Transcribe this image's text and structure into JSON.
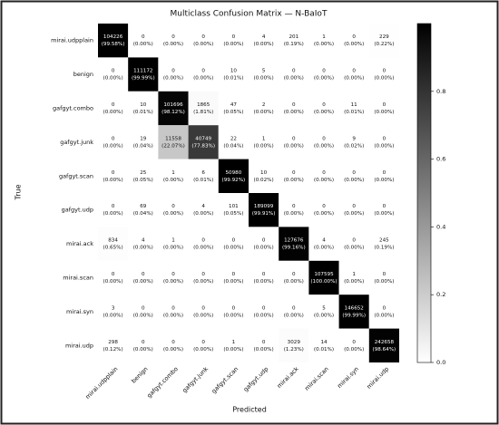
{
  "chart_data": {
    "type": "heatmap",
    "title": "Multiclass Confusion Matrix — N-BaIoT",
    "xlabel": "Predicted",
    "ylabel": "True",
    "categories": [
      "mirai.udpplain",
      "benign",
      "gafgyt.combo",
      "gafgyt.junk",
      "gafgyt.scan",
      "gafgyt.udp",
      "mirai.ack",
      "mirai.scan",
      "mirai.syn",
      "mirai.udp"
    ],
    "counts": [
      [
        104226,
        0,
        0,
        0,
        0,
        4,
        201,
        1,
        0,
        229
      ],
      [
        0,
        111172,
        0,
        0,
        10,
        5,
        0,
        0,
        0,
        0
      ],
      [
        0,
        10,
        101696,
        1865,
        47,
        2,
        0,
        0,
        11,
        0
      ],
      [
        0,
        19,
        11558,
        40749,
        22,
        1,
        0,
        0,
        9,
        0
      ],
      [
        0,
        25,
        1,
        6,
        50980,
        10,
        0,
        0,
        0,
        0
      ],
      [
        0,
        69,
        0,
        4,
        101,
        189099,
        0,
        0,
        0,
        0
      ],
      [
        834,
        4,
        1,
        0,
        0,
        0,
        127676,
        4,
        0,
        245
      ],
      [
        0,
        0,
        0,
        0,
        0,
        0,
        0,
        107595,
        1,
        0
      ],
      [
        3,
        0,
        0,
        0,
        0,
        0,
        0,
        5,
        146652,
        0
      ],
      [
        298,
        0,
        0,
        0,
        1,
        0,
        3029,
        14,
        0,
        242658
      ]
    ],
    "values": [
      [
        0.9958,
        0,
        0,
        0,
        0,
        0,
        0.0019,
        0,
        0,
        0.0022
      ],
      [
        0,
        0.9999,
        0,
        0,
        0.0001,
        0,
        0,
        0,
        0,
        0
      ],
      [
        0,
        0.0001,
        0.9812,
        0.0181,
        0.0005,
        0,
        0,
        0,
        0.0001,
        0
      ],
      [
        0,
        0.0004,
        0.2207,
        0.7783,
        0.0004,
        0,
        0,
        0,
        0.0002,
        0
      ],
      [
        0,
        0.0005,
        0,
        0.0001,
        0.9992,
        0.0002,
        0,
        0,
        0,
        0
      ],
      [
        0,
        0.0004,
        0,
        0,
        0.0005,
        0.9991,
        0,
        0,
        0,
        0
      ],
      [
        0.0065,
        0,
        0,
        0,
        0,
        0,
        0.9916,
        0,
        0,
        0.0019
      ],
      [
        0,
        0,
        0,
        0,
        0,
        0,
        0,
        1,
        0,
        0
      ],
      [
        0,
        0,
        0,
        0,
        0,
        0,
        0,
        0,
        0.9999,
        0
      ],
      [
        0.0012,
        0,
        0,
        0,
        0,
        0,
        0.0123,
        0.0001,
        0,
        0.9864
      ]
    ],
    "value_labels": [
      [
        "(99.58%)",
        "(0.00%)",
        "(0.00%)",
        "(0.00%)",
        "(0.00%)",
        "(0.00%)",
        "(0.19%)",
        "(0.00%)",
        "(0.00%)",
        "(0.22%)"
      ],
      [
        "(0.00%)",
        "(99.99%)",
        "(0.00%)",
        "(0.00%)",
        "(0.01%)",
        "(0.00%)",
        "(0.00%)",
        "(0.00%)",
        "(0.00%)",
        "(0.00%)"
      ],
      [
        "(0.00%)",
        "(0.01%)",
        "(98.12%)",
        "(1.81%)",
        "(0.05%)",
        "(0.00%)",
        "(0.00%)",
        "(0.00%)",
        "(0.01%)",
        "(0.00%)"
      ],
      [
        "(0.00%)",
        "(0.04%)",
        "(22.07%)",
        "(77.83%)",
        "(0.04%)",
        "(0.00%)",
        "(0.00%)",
        "(0.00%)",
        "(0.02%)",
        "(0.00%)"
      ],
      [
        "(0.00%)",
        "(0.05%)",
        "(0.00%)",
        "(0.01%)",
        "(99.92%)",
        "(0.02%)",
        "(0.00%)",
        "(0.00%)",
        "(0.00%)",
        "(0.00%)"
      ],
      [
        "(0.00%)",
        "(0.04%)",
        "(0.00%)",
        "(0.00%)",
        "(0.05%)",
        "(99.91%)",
        "(0.00%)",
        "(0.00%)",
        "(0.00%)",
        "(0.00%)"
      ],
      [
        "(0.65%)",
        "(0.00%)",
        "(0.00%)",
        "(0.00%)",
        "(0.00%)",
        "(0.00%)",
        "(99.16%)",
        "(0.00%)",
        "(0.00%)",
        "(0.19%)"
      ],
      [
        "(0.00%)",
        "(0.00%)",
        "(0.00%)",
        "(0.00%)",
        "(0.00%)",
        "(0.00%)",
        "(0.00%)",
        "(100.00%)",
        "(0.00%)",
        "(0.00%)"
      ],
      [
        "(0.00%)",
        "(0.00%)",
        "(0.00%)",
        "(0.00%)",
        "(0.00%)",
        "(0.00%)",
        "(0.00%)",
        "(0.00%)",
        "(99.99%)",
        "(0.00%)"
      ],
      [
        "(0.12%)",
        "(0.00%)",
        "(0.00%)",
        "(0.00%)",
        "(0.00%)",
        "(0.00%)",
        "(1.23%)",
        "(0.01%)",
        "(0.00%)",
        "(98.64%)"
      ]
    ],
    "clim": [
      0,
      1
    ],
    "cticks": [
      {
        "value": 0,
        "label": "0.0"
      },
      0.2,
      0.4,
      0.6,
      0.8
    ]
  }
}
